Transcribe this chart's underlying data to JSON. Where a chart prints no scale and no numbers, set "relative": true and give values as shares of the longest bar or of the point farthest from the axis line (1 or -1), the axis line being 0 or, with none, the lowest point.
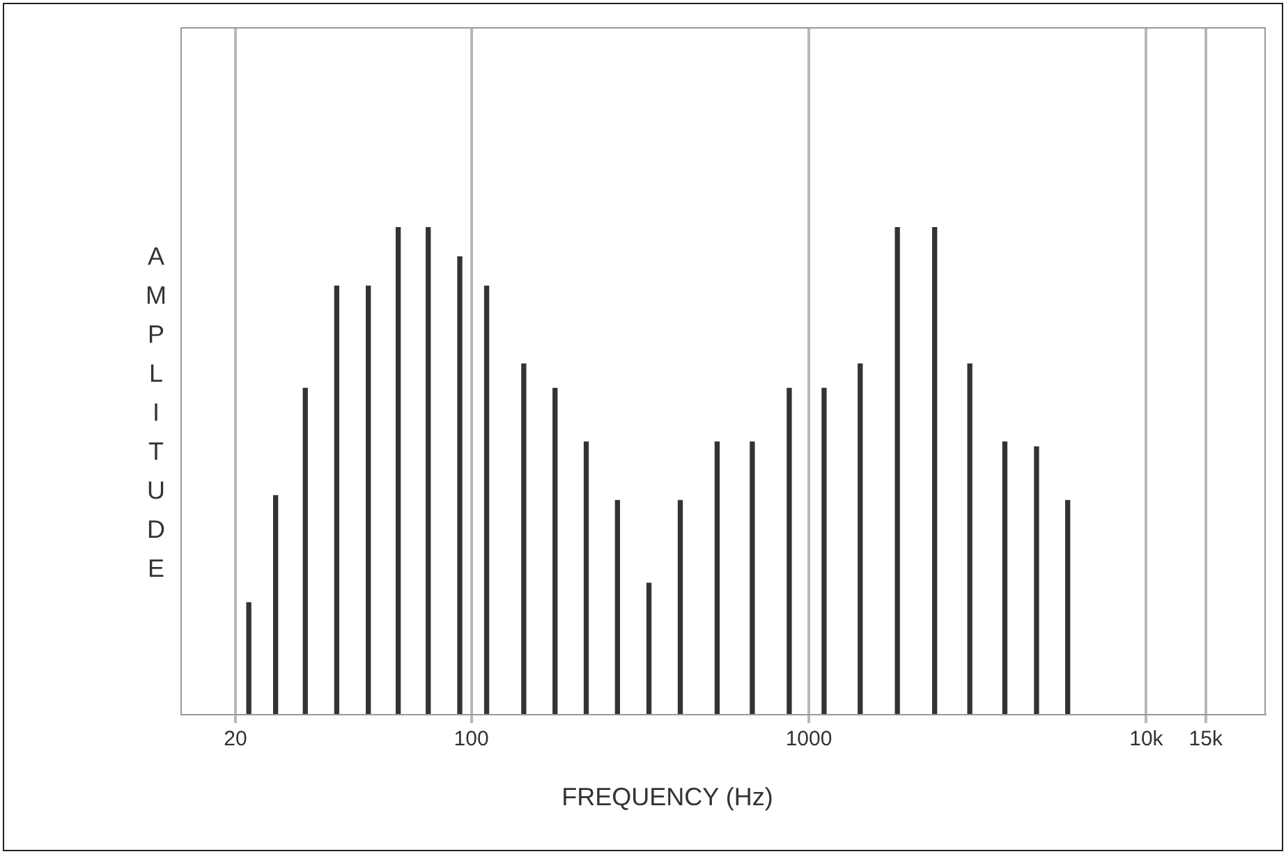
{
  "chart_data": {
    "type": "bar",
    "relative": true,
    "xlabel": "FREQUENCY (Hz)",
    "ylabel": "AMPLITUDE",
    "x": [
      21.9,
      26.3,
      32.2,
      39.9,
      49.5,
      60.7,
      74.5,
      92.4,
      111,
      143,
      177,
      219,
      271,
      336,
      416,
      535,
      680,
      875,
      1110,
      1420,
      1830,
      2360,
      3000,
      3810,
      4730,
      5850
    ],
    "values": [
      0.23,
      0.45,
      0.67,
      0.88,
      0.88,
      1,
      1,
      0.94,
      0.88,
      0.72,
      0.67,
      0.56,
      0.44,
      0.27,
      0.44,
      0.56,
      0.56,
      0.67,
      0.67,
      0.72,
      1,
      1,
      0.72,
      0.56,
      0.55,
      0.44
    ],
    "color": "#333333",
    "xlim": [
      13.8,
      22500
    ],
    "xticks": [
      {
        "value": 20,
        "label": "20"
      },
      {
        "value": 100,
        "label": "100"
      },
      {
        "value": 1000,
        "label": "1000"
      },
      {
        "value": 10000,
        "label": "10k"
      },
      {
        "value": 15000,
        "label": "15k"
      }
    ],
    "log": "x",
    "grid": "x",
    "legend": false
  }
}
